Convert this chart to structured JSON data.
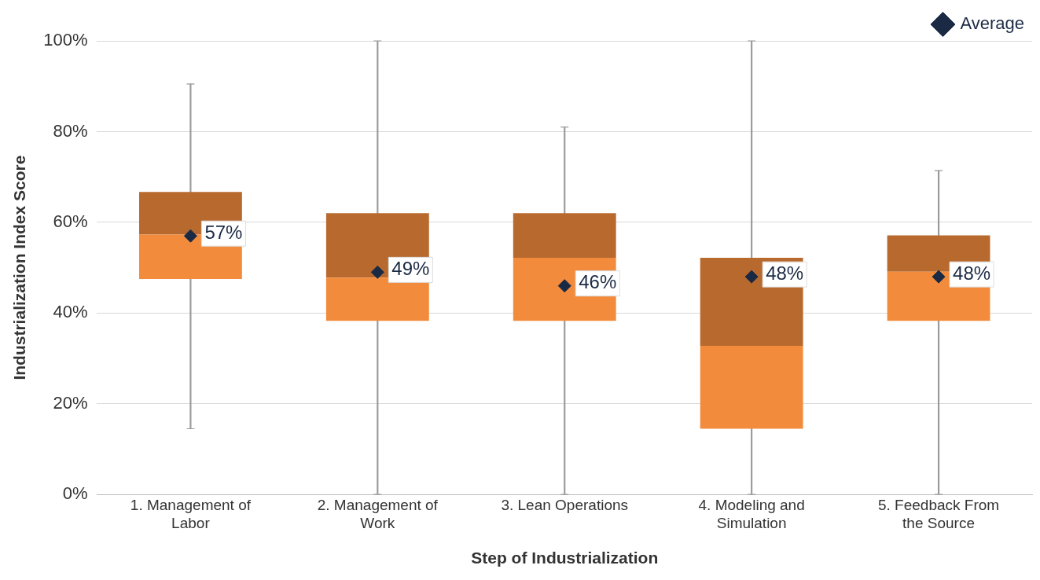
{
  "chart_data": {
    "type": "box",
    "xlabel": "Step of Industrialization",
    "ylabel": "Industrialization Index Score",
    "categories": [
      "1. Management of Labor",
      "2. Management of Work",
      "3. Lean Operations",
      "4. Modeling and Simulation",
      "5. Feedback From the Source"
    ],
    "ylim": [
      0,
      100
    ],
    "yticks": [
      {
        "value": 0,
        "label": "0%"
      },
      {
        "value": 20,
        "label": "20%"
      },
      {
        "value": 40,
        "label": "40%"
      },
      {
        "value": 60,
        "label": "60%"
      },
      {
        "value": 80,
        "label": "80%"
      },
      {
        "value": 100,
        "label": "100%"
      }
    ],
    "grid": "y",
    "legend": "top right",
    "series": [
      {
        "color": "#f28c3c",
        "boxes": [
          {
            "low": 14.5,
            "q1": 47.5,
            "median": 57.3,
            "q3": 66.7,
            "high": 90.5
          },
          {
            "low": 0,
            "q1": 38.3,
            "median": 47.8,
            "q3": 62,
            "high": 100
          },
          {
            "low": 0,
            "q1": 38.3,
            "median": 52.2,
            "q3": 62,
            "high": 81
          },
          {
            "low": 0,
            "q1": 14.5,
            "median": 32.8,
            "q3": 52.2,
            "high": 100
          },
          {
            "low": 0,
            "q1": 38.3,
            "median": 49.1,
            "q3": 57.1,
            "high": 71.4
          }
        ]
      },
      {
        "type": "scatter",
        "name": "Average",
        "color": "#1b2a44",
        "marker": "diamond",
        "x": [
          "1. Management of Labor",
          "2. Management of Work",
          "3. Lean Operations",
          "4. Modeling and Simulation",
          "5. Feedback From the Source"
        ],
        "values": [
          57,
          49,
          46,
          48,
          48
        ],
        "value_labels": [
          "57%",
          "49%",
          "46%",
          "48%",
          "48%"
        ]
      }
    ]
  }
}
